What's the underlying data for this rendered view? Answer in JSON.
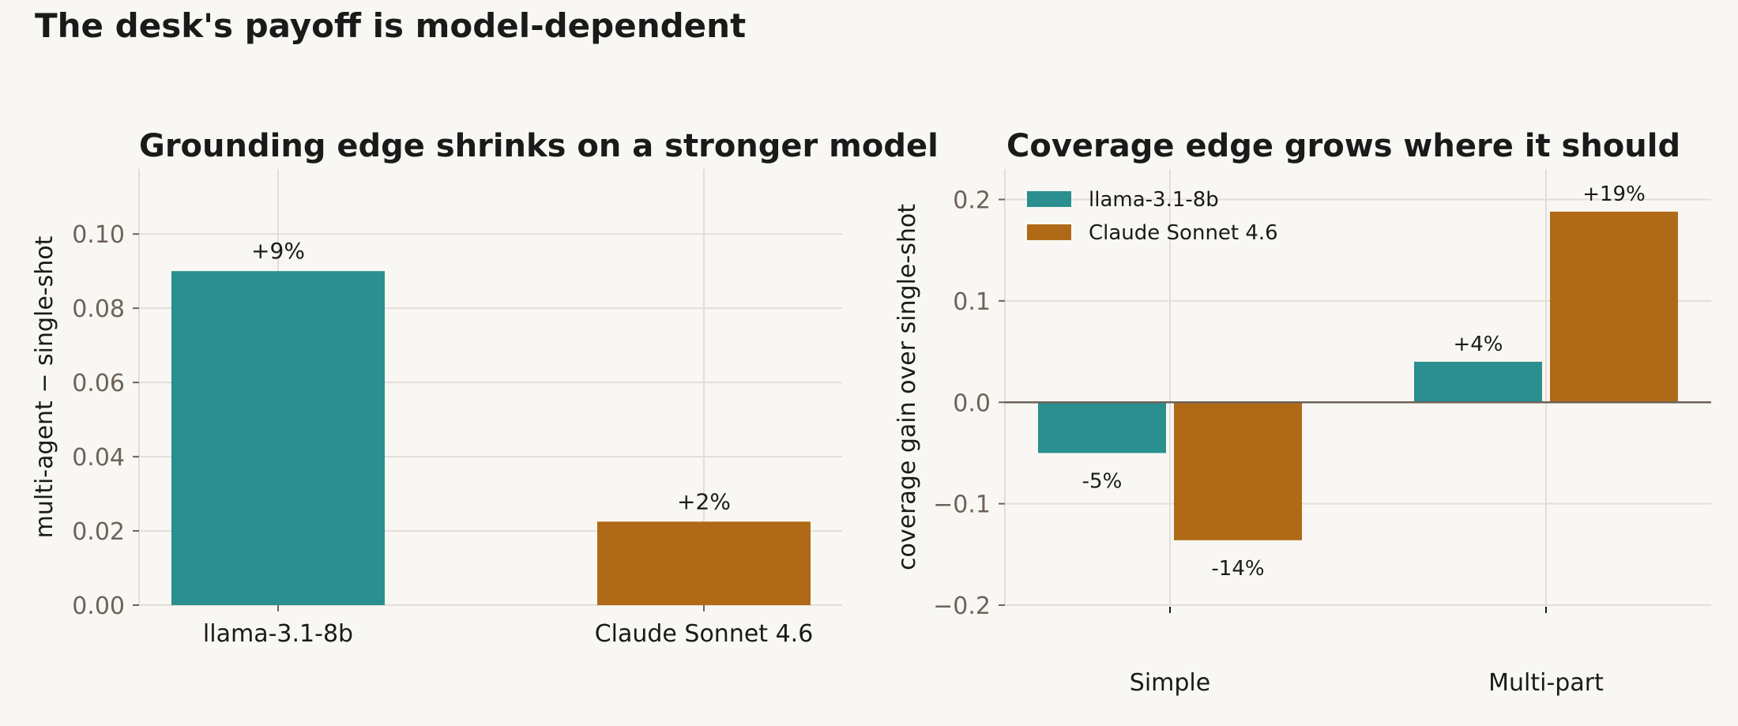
{
  "page_title": "The desk's payoff is model-dependent",
  "colors": {
    "background": "#f9f7f3",
    "grid": "#e3ded6",
    "tick_label": "#6e6259",
    "text": "#1a1a1a",
    "zero_line": "#6e6259",
    "llama": "#2a8f8e",
    "claude": "#b06a17"
  },
  "chart_data": [
    {
      "type": "bar",
      "title": "Grounding edge shrinks on a stronger model",
      "xlabel": "",
      "ylabel": "multi-agent − single-shot",
      "categories": [
        "llama-3.1-8b",
        "Claude Sonnet 4.6"
      ],
      "values": [
        0.09,
        0.0225
      ],
      "colors": [
        "#2a8f8e",
        "#b06a17"
      ],
      "data_labels": [
        "+9%",
        "+2%"
      ],
      "ylim": [
        0,
        0.1175
      ],
      "yticks": [
        0.0,
        0.02,
        0.04,
        0.06,
        0.08,
        0.1
      ],
      "ytick_labels": [
        "0.00",
        "0.02",
        "0.04",
        "0.06",
        "0.08",
        "0.10"
      ],
      "grid": true,
      "legend": null
    },
    {
      "type": "bar",
      "title": "Coverage edge grows where it should",
      "xlabel": "",
      "ylabel": "coverage gain over single-shot",
      "categories": [
        "Simple",
        "Multi-part"
      ],
      "series": [
        {
          "name": "llama-3.1-8b",
          "color": "#2a8f8e",
          "values": [
            -0.05,
            0.04
          ],
          "data_labels": [
            "-5%",
            "+4%"
          ]
        },
        {
          "name": "Claude Sonnet 4.6",
          "color": "#b06a17",
          "values": [
            -0.136,
            0.188
          ],
          "data_labels": [
            "-14%",
            "+19%"
          ]
        }
      ],
      "ylim": [
        -0.2,
        0.23
      ],
      "yticks": [
        -0.2,
        -0.1,
        0.0,
        0.1,
        0.2
      ],
      "ytick_labels": [
        "−0.2",
        "−0.1",
        "0.0",
        "0.1",
        "0.2"
      ],
      "zero_line": true,
      "grid": true,
      "legend": "top-left"
    }
  ]
}
